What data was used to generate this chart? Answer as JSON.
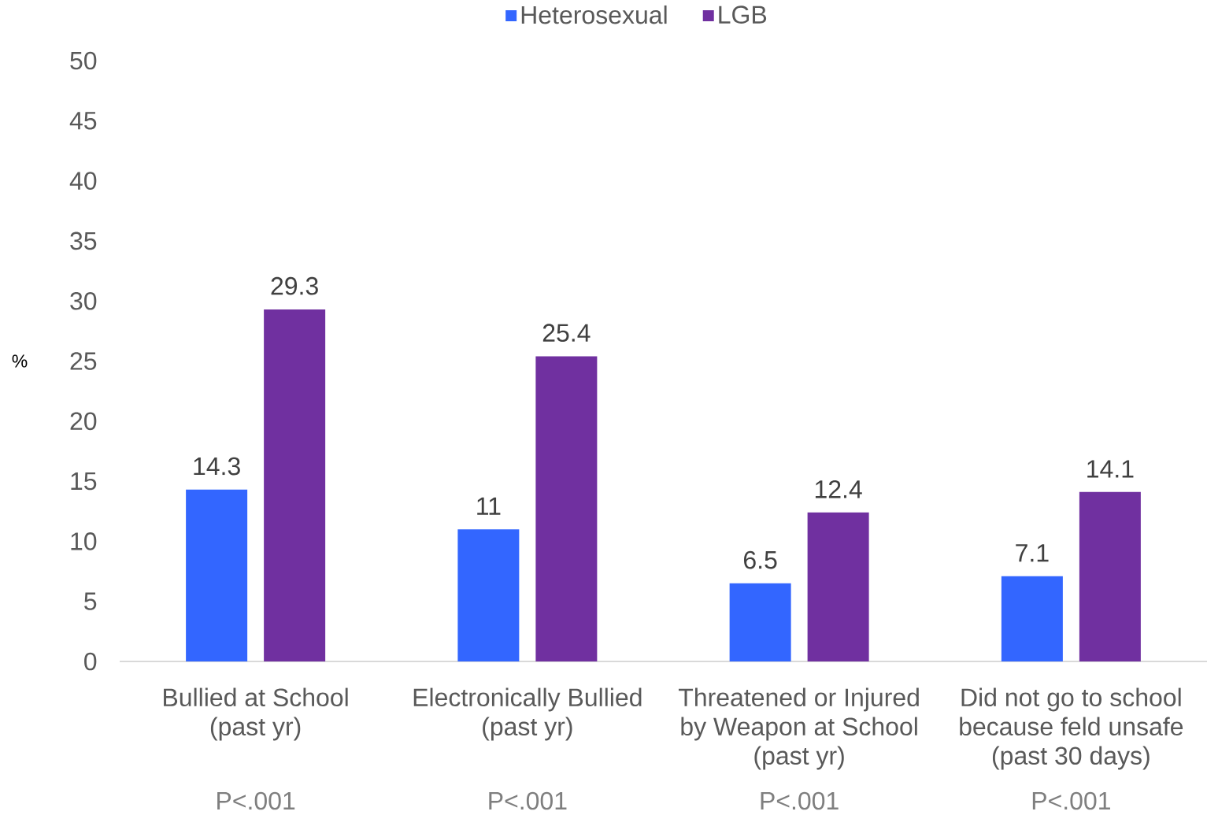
{
  "chart_data": {
    "type": "bar",
    "ylabel": "%",
    "categories": [
      "Bullied at School (past yr)",
      "Electronically Bullied (past yr)",
      "Threatened or Injured by Weapon at School (past yr)",
      "Did not go to school because feld unsafe (past 30 days)"
    ],
    "series": [
      {
        "name": "Heterosexual",
        "color": "#3366ff",
        "values": [
          14.3,
          11,
          6.5,
          7.1
        ]
      },
      {
        "name": "LGB",
        "color": "#7030a0",
        "values": [
          29.3,
          25.4,
          12.4,
          14.1
        ]
      }
    ],
    "ylim": [
      0,
      50
    ],
    "yticks": [
      0,
      5,
      10,
      15,
      20,
      25,
      30,
      35,
      40,
      45,
      50
    ],
    "data_labels": true,
    "legend": "top",
    "annotations": [
      "P<.001",
      "P<.001",
      "P<.001",
      "P<.001"
    ]
  }
}
